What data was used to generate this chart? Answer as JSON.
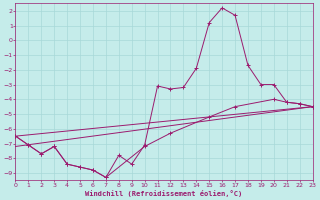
{
  "xlabel": "Windchill (Refroidissement éolien,°C)",
  "xlim": [
    0,
    23
  ],
  "ylim": [
    -9.5,
    2.5
  ],
  "yticks": [
    2,
    1,
    0,
    -1,
    -2,
    -3,
    -4,
    -5,
    -6,
    -7,
    -8,
    -9
  ],
  "xticks": [
    0,
    1,
    2,
    3,
    4,
    5,
    6,
    7,
    8,
    9,
    10,
    11,
    12,
    13,
    14,
    15,
    16,
    17,
    18,
    19,
    20,
    21,
    22,
    23
  ],
  "bg_color": "#c5ecea",
  "grid_color": "#a8d8d8",
  "line_color": "#9b1b6e",
  "series1": [
    [
      0,
      -6.5
    ],
    [
      1,
      -7.1
    ],
    [
      2,
      -7.7
    ],
    [
      3,
      -7.2
    ],
    [
      4,
      -8.4
    ],
    [
      5,
      -8.6
    ],
    [
      6,
      -8.8
    ],
    [
      7,
      -9.3
    ],
    [
      8,
      -7.8
    ],
    [
      9,
      -8.4
    ],
    [
      10,
      -7.1
    ],
    [
      11,
      -3.1
    ],
    [
      12,
      -3.3
    ],
    [
      13,
      -3.2
    ],
    [
      14,
      -1.9
    ],
    [
      15,
      1.2
    ],
    [
      16,
      2.2
    ],
    [
      17,
      1.7
    ],
    [
      18,
      -1.7
    ],
    [
      19,
      -3.0
    ],
    [
      20,
      -3.0
    ],
    [
      21,
      -4.2
    ],
    [
      22,
      -4.3
    ],
    [
      23,
      -4.5
    ]
  ],
  "series2": [
    [
      0,
      -6.5
    ],
    [
      1,
      -7.1
    ],
    [
      2,
      -7.7
    ],
    [
      3,
      -7.2
    ],
    [
      4,
      -8.4
    ],
    [
      5,
      -8.6
    ],
    [
      6,
      -8.8
    ],
    [
      7,
      -9.3
    ],
    [
      10,
      -7.2
    ],
    [
      12,
      -6.3
    ],
    [
      15,
      -5.2
    ],
    [
      17,
      -4.5
    ],
    [
      20,
      -4.0
    ],
    [
      21,
      -4.2
    ],
    [
      22,
      -4.3
    ],
    [
      23,
      -4.5
    ]
  ],
  "series3_x": [
    0,
    23
  ],
  "series3_y": [
    -6.5,
    -4.5
  ],
  "series4_x": [
    0,
    23
  ],
  "series4_y": [
    -7.2,
    -4.5
  ]
}
